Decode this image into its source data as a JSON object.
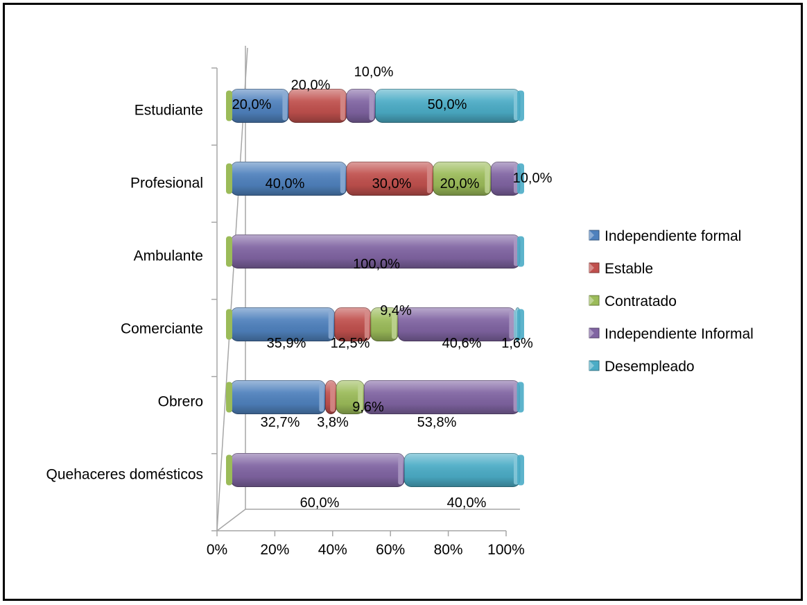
{
  "chart_data": {
    "type": "bar",
    "orientation": "horizontal",
    "stacked": true,
    "percent": true,
    "categories": [
      "Estudiante",
      "Profesional",
      "Ambulante",
      "Comerciante",
      "Obrero",
      "Quehaceres domésticos"
    ],
    "series": [
      {
        "name": "Independiente formal",
        "color": "#4f81bd",
        "values": [
          20.0,
          40.0,
          0.0,
          35.9,
          32.7,
          0.0
        ],
        "labels": [
          "20,0%",
          "40,0%",
          "",
          "35,9%",
          "32,7%",
          ""
        ]
      },
      {
        "name": "Estable",
        "color": "#c0504d",
        "values": [
          20.0,
          30.0,
          0.0,
          12.5,
          3.8,
          0.0
        ],
        "labels": [
          "20,0%",
          "30,0%",
          "",
          "12,5%",
          "3,8%",
          ""
        ]
      },
      {
        "name": "Contratado",
        "color": "#9bbb59",
        "values": [
          0.0,
          20.0,
          0.0,
          9.4,
          9.6,
          0.0
        ],
        "labels": [
          "",
          "20,0%",
          "",
          "9,4%",
          "9,6%",
          ""
        ]
      },
      {
        "name": "Independiente Informal",
        "color": "#8064a2",
        "values": [
          10.0,
          10.0,
          100.0,
          40.6,
          53.8,
          60.0
        ],
        "labels": [
          "10,0%",
          "10,0%",
          "100,0%",
          "40,6%",
          "53,8%",
          "60,0%"
        ]
      },
      {
        "name": "Desempleado",
        "color": "#4bacc6",
        "values": [
          50.0,
          0.0,
          0.0,
          1.6,
          0.0,
          40.0
        ],
        "labels": [
          "50,0%",
          "",
          "",
          "1,6%",
          "",
          "40,0%"
        ]
      }
    ],
    "xticks": [
      "0%",
      "20%",
      "40%",
      "60%",
      "80%",
      "100%"
    ],
    "xlim": [
      0,
      100
    ],
    "legend_position": "right",
    "grid": false
  }
}
